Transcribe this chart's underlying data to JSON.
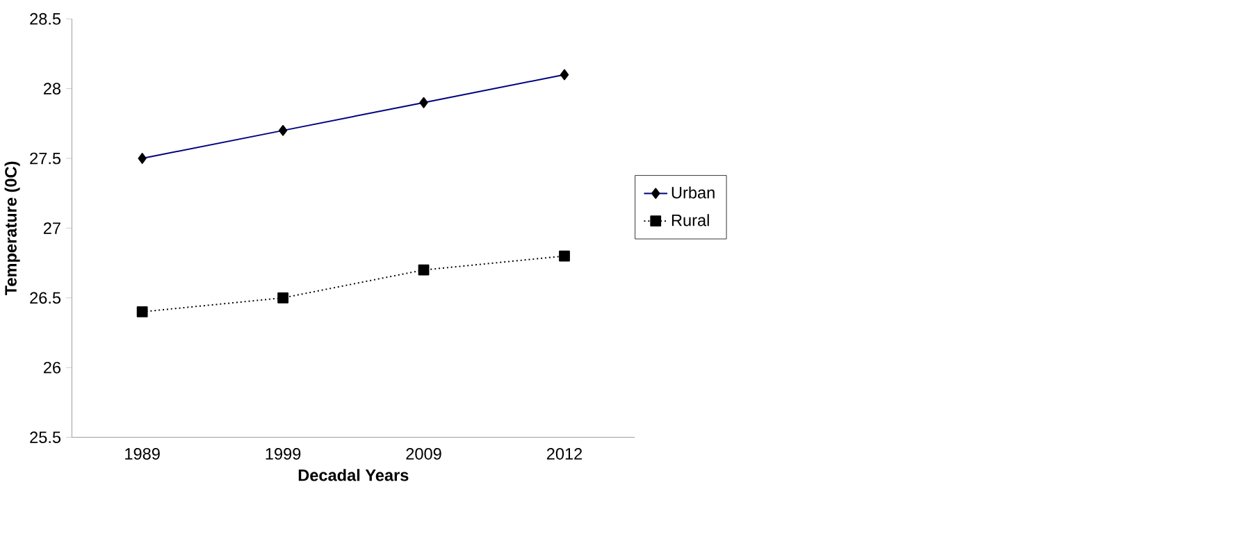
{
  "chart_data": {
    "type": "line",
    "xlabel": "Decadal Years",
    "ylabel": "Temperature (0C)",
    "categories": [
      "1989",
      "1999",
      "2009",
      "2012"
    ],
    "series": [
      {
        "name": "Urban",
        "color": "#000080",
        "values": [
          27.5,
          27.7,
          27.9,
          28.1
        ],
        "marker": "diamond",
        "line_style": "solid"
      },
      {
        "name": "Rural",
        "color": "#000000",
        "values": [
          26.4,
          26.5,
          26.7,
          26.8
        ],
        "marker": "square",
        "line_style": "dotted"
      }
    ],
    "ylim": [
      25.5,
      28.5
    ],
    "yticks": [
      25.5,
      26,
      26.5,
      27,
      27.5,
      28,
      28.5
    ],
    "grid": false,
    "legend": "right"
  }
}
